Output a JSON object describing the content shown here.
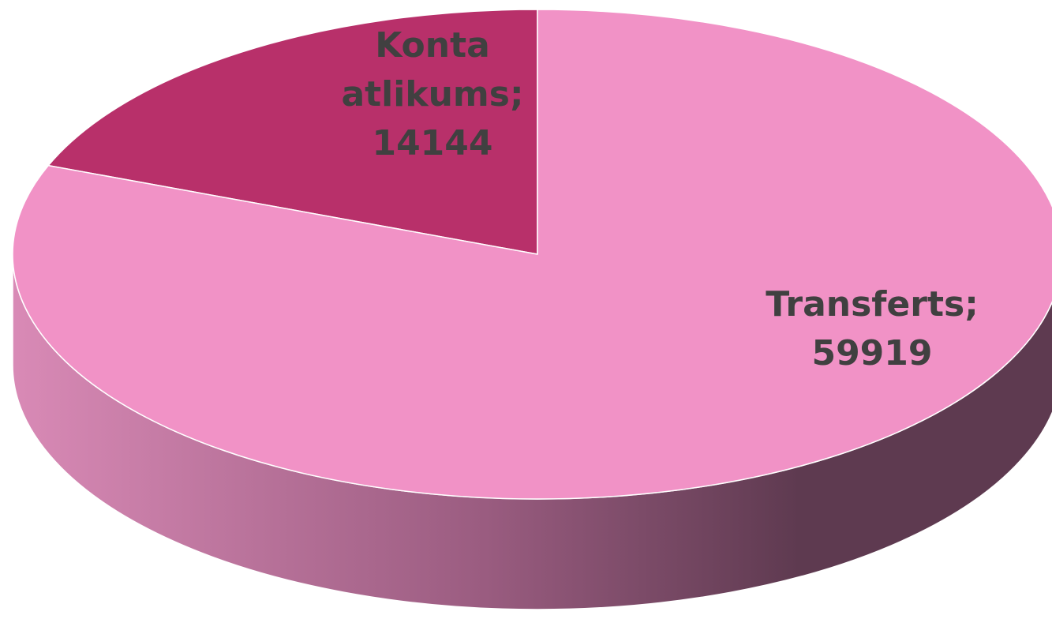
{
  "chart_data": {
    "type": "pie",
    "3d": true,
    "values": [
      14144,
      59919
    ],
    "value_labels": [
      "Konta atlikums; 14144",
      "Transferts; 59919"
    ],
    "colors": [
      "#b8306a",
      "#f192c6"
    ]
  }
}
